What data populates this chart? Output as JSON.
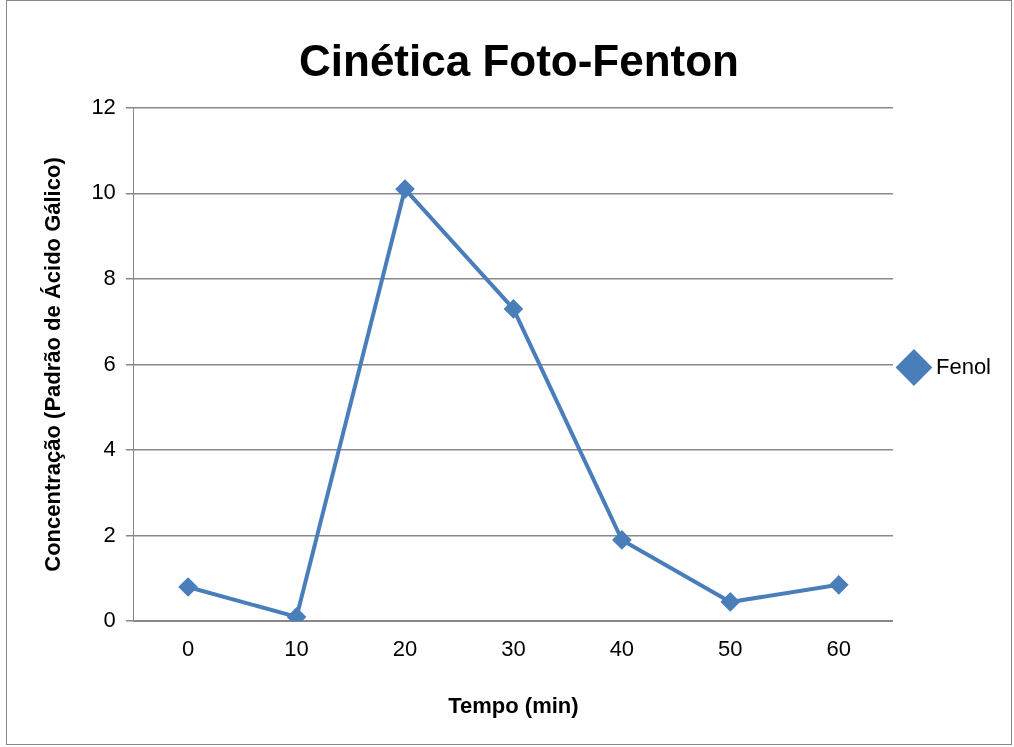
{
  "chart_data": {
    "type": "line",
    "title": "Cinética Foto-Fenton",
    "xlabel": "Tempo (min)",
    "ylabel": "Concentração (Padrão de Ácido Gálico)",
    "categories": [
      "0",
      "10",
      "20",
      "30",
      "40",
      "50",
      "60"
    ],
    "series": [
      {
        "name": "Fenol",
        "color": "#4a7ebb",
        "values": [
          0.8,
          0.1,
          10.1,
          7.3,
          1.9,
          0.45,
          0.85
        ]
      }
    ],
    "ylim": [
      0,
      12
    ],
    "yticks": [
      0,
      2,
      4,
      6,
      8,
      10,
      12
    ],
    "grid": "y",
    "legend": "right",
    "marker": "diamond",
    "line_style": "solid"
  }
}
